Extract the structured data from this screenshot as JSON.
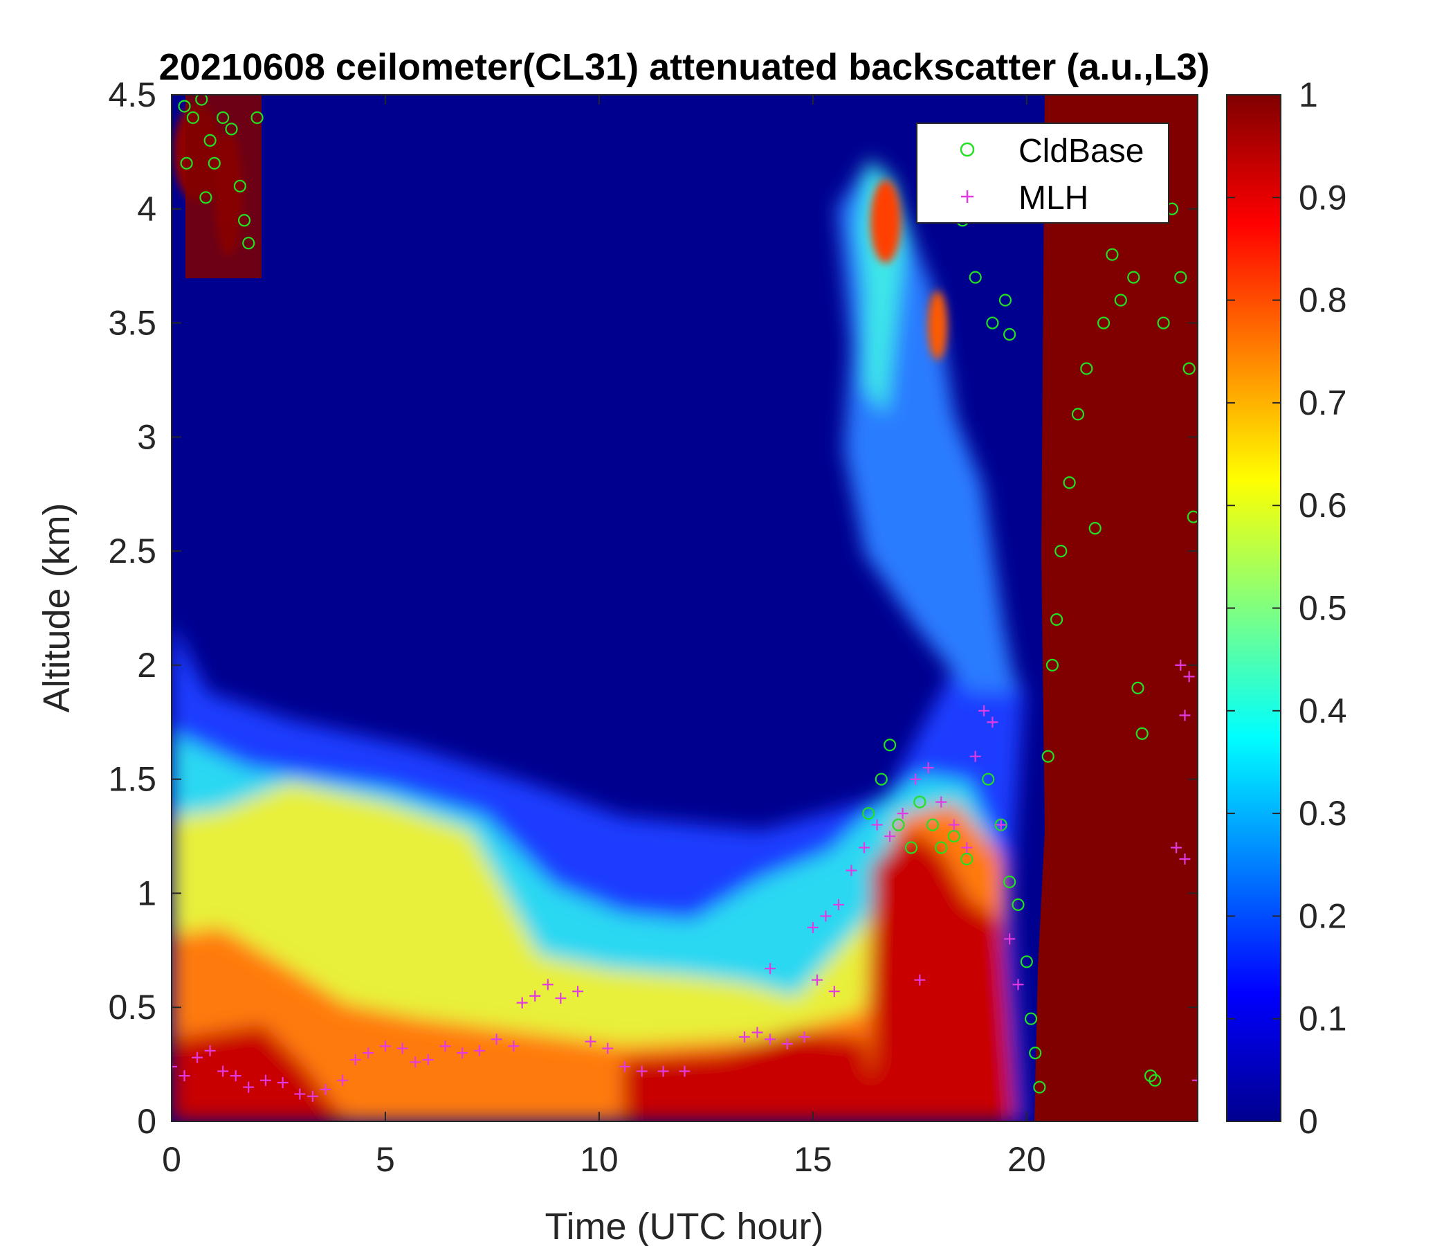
{
  "chart_data": {
    "type": "heatmap",
    "title": "20210608 ceilometer(CL31) attenuated backscatter (a.u.,L3)",
    "xlabel": "Time (UTC hour)",
    "ylabel": "Altitude (km)",
    "xlim": [
      0,
      24
    ],
    "ylim": [
      0,
      4.5
    ],
    "xticks": [
      0,
      5,
      10,
      15,
      20
    ],
    "yticks": [
      0,
      0.5,
      1,
      1.5,
      2,
      2.5,
      3,
      3.5,
      4,
      4.5
    ],
    "colorbar": {
      "colormap": "jet",
      "range": [
        0,
        1
      ],
      "ticks": [
        0,
        0.1,
        0.2,
        0.3,
        0.4,
        0.5,
        0.6,
        0.7,
        0.8,
        0.9,
        1
      ]
    },
    "legend": {
      "placement": "top-right",
      "entries": [
        "CldBase",
        "MLH"
      ]
    },
    "series": [
      {
        "name": "CldBase",
        "marker": "circle",
        "color": "#22e022",
        "points": [
          [
            0.3,
            4.45
          ],
          [
            0.5,
            4.4
          ],
          [
            0.7,
            4.48
          ],
          [
            0.9,
            4.3
          ],
          [
            1.0,
            4.2
          ],
          [
            1.2,
            4.4
          ],
          [
            1.4,
            4.35
          ],
          [
            1.6,
            4.1
          ],
          [
            1.7,
            3.95
          ],
          [
            1.8,
            3.85
          ],
          [
            2.0,
            4.4
          ],
          [
            0.35,
            4.2
          ],
          [
            0.8,
            4.05
          ],
          [
            16.3,
            1.35
          ],
          [
            16.6,
            1.5
          ],
          [
            16.8,
            1.65
          ],
          [
            17.0,
            1.3
          ],
          [
            17.3,
            1.2
          ],
          [
            17.5,
            1.4
          ],
          [
            17.8,
            1.3
          ],
          [
            18.0,
            1.2
          ],
          [
            18.3,
            1.25
          ],
          [
            18.6,
            1.15
          ],
          [
            19.1,
            1.5
          ],
          [
            19.4,
            1.3
          ],
          [
            19.6,
            1.05
          ],
          [
            19.8,
            0.95
          ],
          [
            20.0,
            0.7
          ],
          [
            20.1,
            0.45
          ],
          [
            20.2,
            0.3
          ],
          [
            20.3,
            0.15
          ],
          [
            20.5,
            1.6
          ],
          [
            20.6,
            2.0
          ],
          [
            20.7,
            2.2
          ],
          [
            20.8,
            2.5
          ],
          [
            21.0,
            2.8
          ],
          [
            21.2,
            3.1
          ],
          [
            21.4,
            3.3
          ],
          [
            21.6,
            2.6
          ],
          [
            21.8,
            3.5
          ],
          [
            22.0,
            3.8
          ],
          [
            22.2,
            3.6
          ],
          [
            22.5,
            3.7
          ],
          [
            22.6,
            1.9
          ],
          [
            22.7,
            1.7
          ],
          [
            22.9,
            0.2
          ],
          [
            23.0,
            0.18
          ],
          [
            23.2,
            3.5
          ],
          [
            23.4,
            4.0
          ],
          [
            23.6,
            3.7
          ],
          [
            23.8,
            3.3
          ],
          [
            23.9,
            2.65
          ],
          [
            18.5,
            3.95
          ],
          [
            18.8,
            3.7
          ],
          [
            19.2,
            3.5
          ],
          [
            19.5,
            3.6
          ],
          [
            19.6,
            3.45
          ]
        ]
      },
      {
        "name": "MLH",
        "marker": "plus",
        "color": "#e23ae2",
        "points": [
          [
            0,
            0.24
          ],
          [
            0.3,
            0.2
          ],
          [
            0.6,
            0.28
          ],
          [
            0.9,
            0.31
          ],
          [
            1.2,
            0.22
          ],
          [
            1.5,
            0.2
          ],
          [
            1.8,
            0.15
          ],
          [
            2.2,
            0.18
          ],
          [
            2.6,
            0.17
          ],
          [
            3.0,
            0.12
          ],
          [
            3.3,
            0.11
          ],
          [
            3.6,
            0.14
          ],
          [
            4.0,
            0.18
          ],
          [
            4.3,
            0.27
          ],
          [
            4.6,
            0.3
          ],
          [
            5.0,
            0.33
          ],
          [
            5.4,
            0.32
          ],
          [
            5.7,
            0.26
          ],
          [
            6.0,
            0.27
          ],
          [
            6.4,
            0.33
          ],
          [
            6.8,
            0.3
          ],
          [
            7.2,
            0.31
          ],
          [
            7.6,
            0.36
          ],
          [
            8.0,
            0.33
          ],
          [
            8.2,
            0.52
          ],
          [
            8.5,
            0.55
          ],
          [
            8.8,
            0.6
          ],
          [
            9.1,
            0.54
          ],
          [
            9.5,
            0.57
          ],
          [
            9.8,
            0.35
          ],
          [
            10.2,
            0.32
          ],
          [
            10.6,
            0.24
          ],
          [
            11.0,
            0.22
          ],
          [
            11.5,
            0.22
          ],
          [
            12.0,
            0.22
          ],
          [
            13.4,
            0.37
          ],
          [
            13.7,
            0.39
          ],
          [
            14.0,
            0.36
          ],
          [
            14.4,
            0.34
          ],
          [
            14.8,
            0.37
          ],
          [
            15.0,
            0.85
          ],
          [
            15.3,
            0.9
          ],
          [
            15.6,
            0.95
          ],
          [
            15.9,
            1.1
          ],
          [
            16.2,
            1.2
          ],
          [
            16.5,
            1.3
          ],
          [
            16.8,
            1.25
          ],
          [
            17.1,
            1.35
          ],
          [
            17.4,
            1.5
          ],
          [
            17.7,
            1.55
          ],
          [
            18.0,
            1.4
          ],
          [
            18.3,
            1.3
          ],
          [
            18.6,
            1.2
          ],
          [
            18.8,
            1.6
          ],
          [
            19.0,
            1.8
          ],
          [
            19.2,
            1.75
          ],
          [
            19.4,
            1.3
          ],
          [
            19.6,
            0.8
          ],
          [
            19.8,
            0.6
          ],
          [
            14.0,
            0.67
          ],
          [
            15.1,
            0.62
          ],
          [
            15.5,
            0.57
          ],
          [
            17.5,
            0.62
          ],
          [
            23.6,
            2.0
          ],
          [
            23.8,
            1.95
          ],
          [
            23.7,
            1.78
          ],
          [
            23.5,
            1.2
          ],
          [
            23.7,
            1.15
          ],
          [
            24.0,
            0.18
          ]
        ]
      }
    ]
  }
}
